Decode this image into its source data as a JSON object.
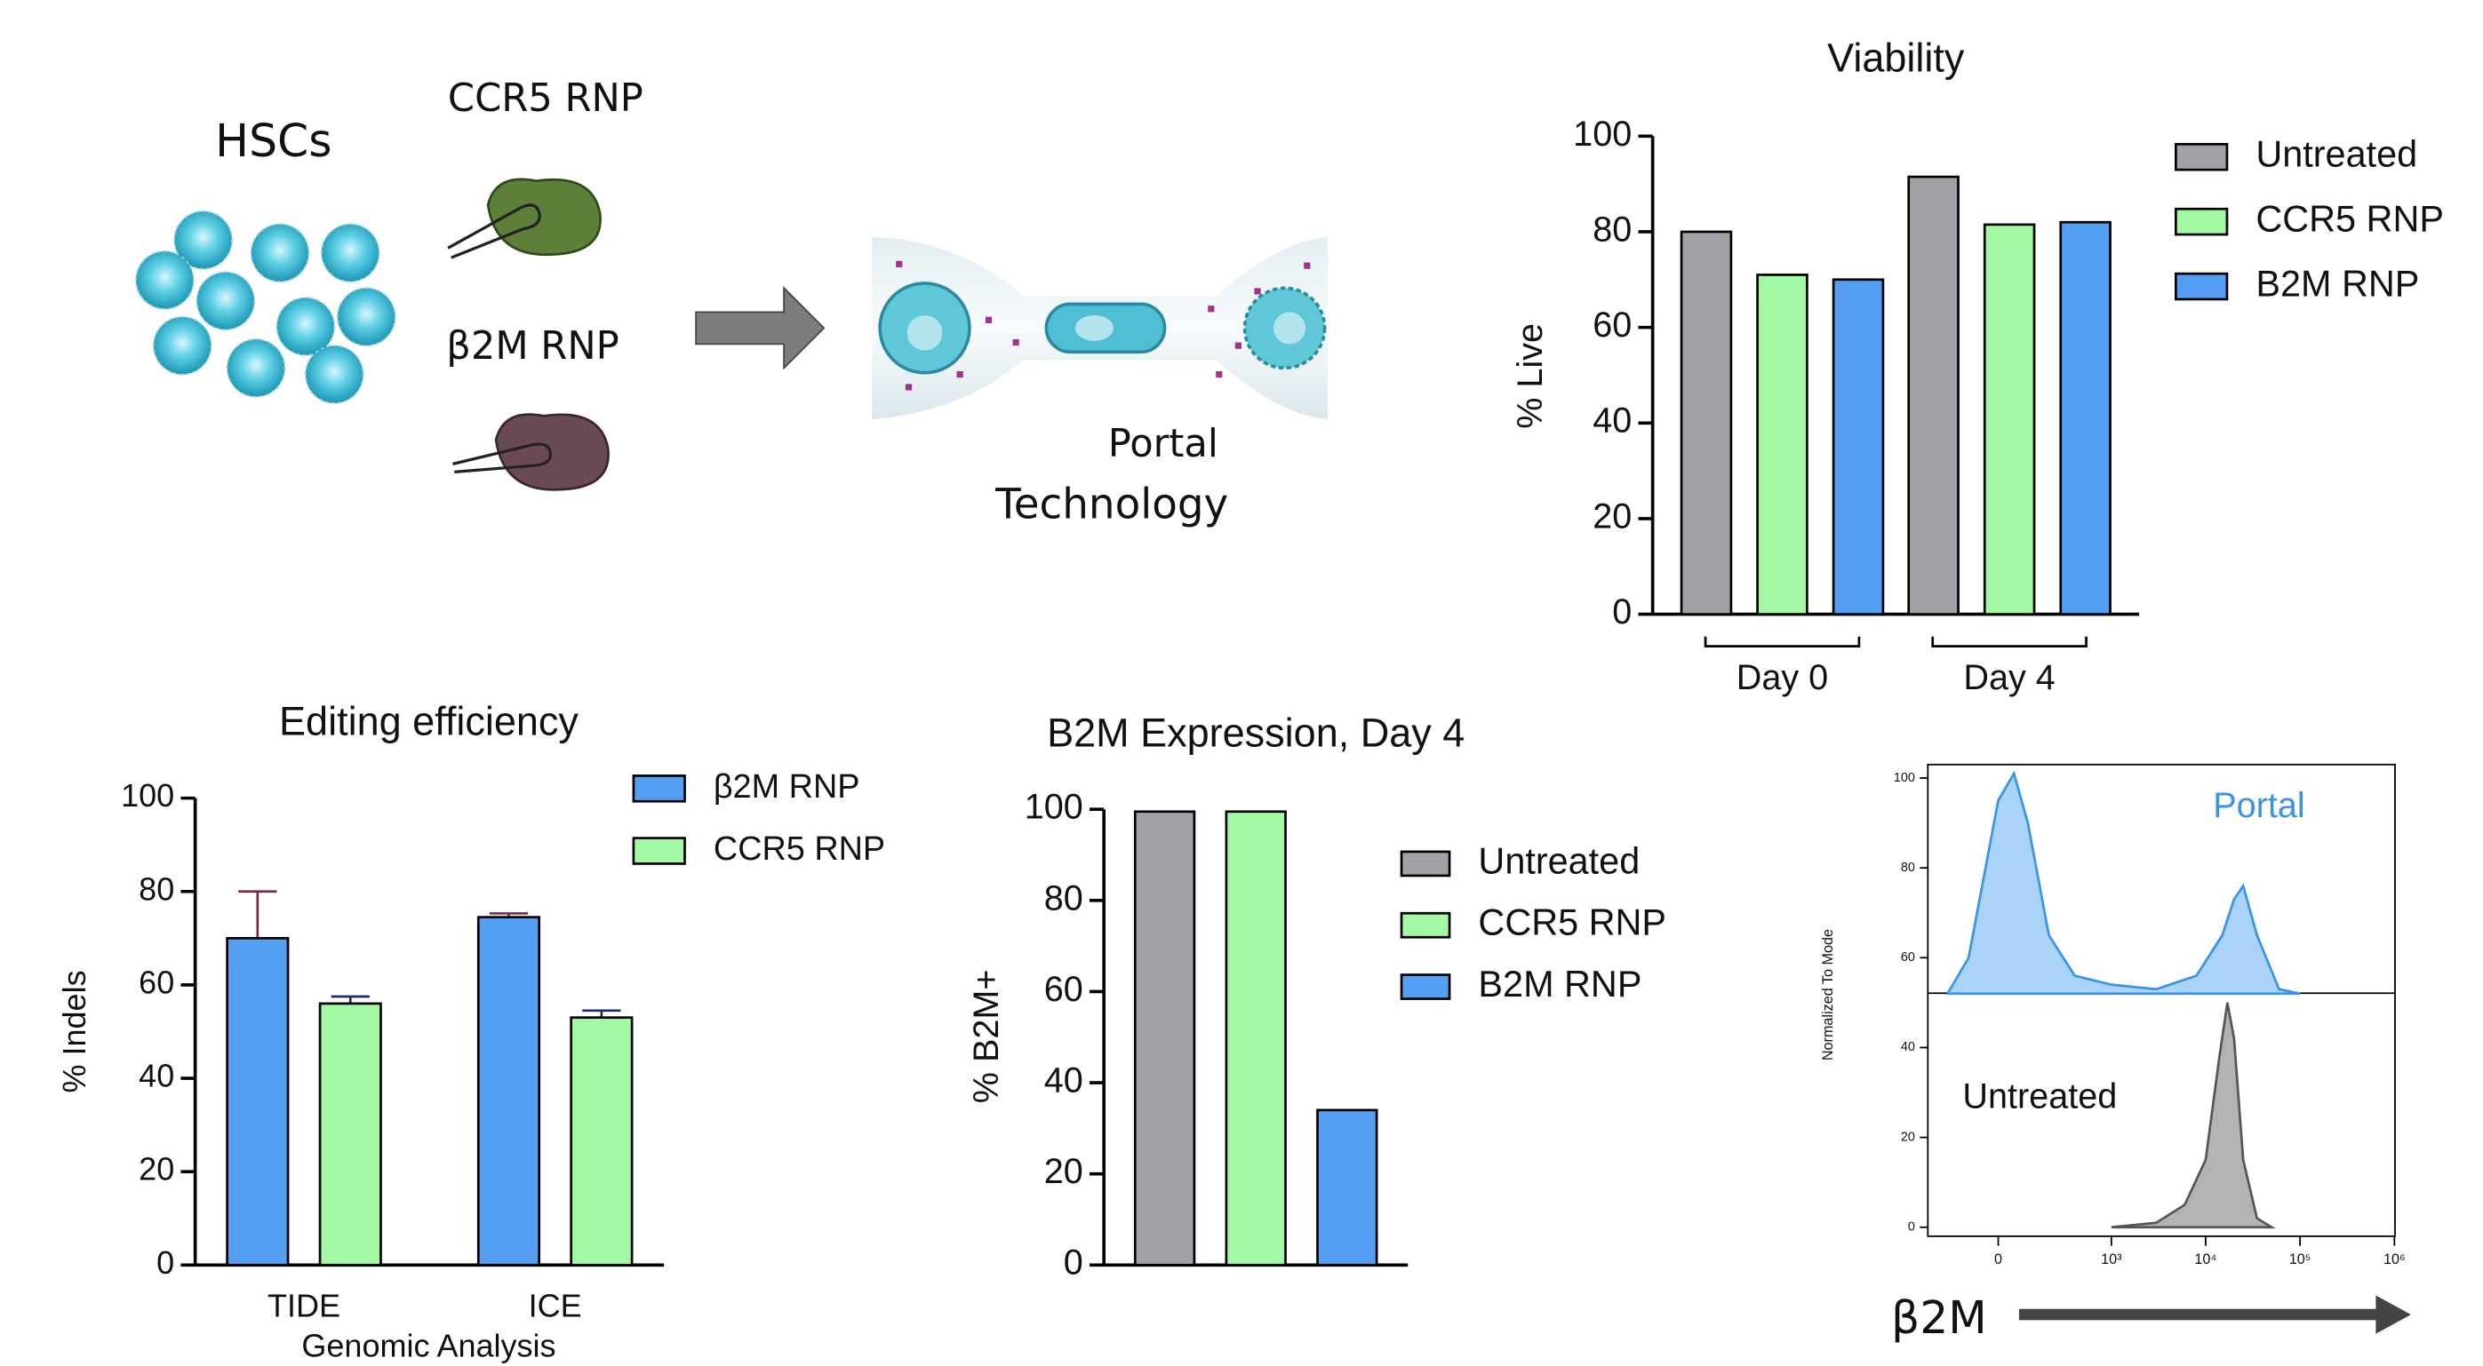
{
  "diagram": {
    "cells_label": "HSCs",
    "rnp_1": "CCR5 RNP",
    "rnp_2": "β2M RNP",
    "device_label_1": "Portal",
    "device_label_2": "Technology"
  },
  "chart_data": [
    {
      "type": "bar",
      "title": "Viability",
      "ylabel": "% Live",
      "categories": [
        "Day 0",
        "Day 4"
      ],
      "series": [
        {
          "name": "Untreated",
          "color": "#a2a2a6",
          "values": [
            80,
            91.5
          ]
        },
        {
          "name": "CCR5 RNP",
          "color": "#a3f9a3",
          "values": [
            71,
            81.5
          ]
        },
        {
          "name": "B2M RNP",
          "color": "#549ff3",
          "values": [
            70,
            82
          ]
        }
      ],
      "ylim": [
        0,
        100
      ],
      "yticks": [
        0,
        20,
        40,
        60,
        80,
        100
      ]
    },
    {
      "type": "bar",
      "title": "Editing efficiency",
      "ylabel": "% Indels",
      "xlabel": "Genomic Analysis",
      "categories": [
        "TIDE",
        "ICE"
      ],
      "series": [
        {
          "name": "β2M RNP",
          "color": "#549ff3",
          "error_color": "#7a2a48",
          "values": [
            70,
            74.5
          ],
          "errors": [
            10,
            0.8
          ]
        },
        {
          "name": "CCR5 RNP",
          "color": "#a3f9a3",
          "error_color": "#1d2a6b",
          "values": [
            56,
            53
          ],
          "errors": [
            1.5,
            1.5
          ]
        }
      ],
      "ylim": [
        0,
        100
      ],
      "yticks": [
        0,
        20,
        40,
        60,
        80,
        100
      ]
    },
    {
      "type": "bar",
      "title": "B2M Expression, Day 4",
      "ylabel": "% B2M+",
      "categories": [
        null
      ],
      "series": [
        {
          "name": "Untreated",
          "color": "#a2a2a6",
          "values": [
            99.5
          ]
        },
        {
          "name": "CCR5 RNP",
          "color": "#a3f9a3",
          "values": [
            99.5
          ]
        },
        {
          "name": "B2M RNP",
          "color": "#549ff3",
          "values": [
            34
          ]
        }
      ],
      "ylim": [
        0,
        100
      ],
      "yticks": [
        0,
        20,
        40,
        60,
        80,
        100
      ]
    },
    {
      "type": "area",
      "ylabel": "Normalized To Mode",
      "xlabel": "β2M",
      "xscale": "asinh",
      "series": [
        {
          "name": "Portal",
          "color": "#3a93e6",
          "fill": "#a9d3f7",
          "x": [
            -200,
            -100,
            0,
            50,
            100,
            200,
            400,
            1000,
            3000,
            8000,
            15000,
            20000,
            25000,
            35000,
            60000,
            100000
          ],
          "values": [
            52,
            60,
            95,
            101,
            90,
            65,
            56,
            54,
            53,
            56,
            65,
            73,
            76,
            65,
            53,
            52
          ]
        },
        {
          "name": "Untreated",
          "color": "#555555",
          "fill": "#b3b3b3",
          "x": [
            1000,
            3000,
            6000,
            10000,
            14000,
            17000,
            20000,
            25000,
            35000,
            50000
          ],
          "values": [
            0,
            1,
            5,
            15,
            38,
            50,
            42,
            15,
            2,
            0
          ]
        }
      ],
      "xlim": [
        -350,
        1000000
      ],
      "xticks": [
        0,
        {
          "value": 1000,
          "label": "10³"
        },
        {
          "value": 10000,
          "label": "10⁴"
        },
        {
          "value": 100000,
          "label": "10⁵"
        },
        {
          "value": 1000000,
          "label": "10⁶"
        }
      ],
      "ylim": [
        -2,
        103
      ],
      "yticks": [
        0,
        20,
        40,
        60,
        80,
        100
      ]
    }
  ]
}
